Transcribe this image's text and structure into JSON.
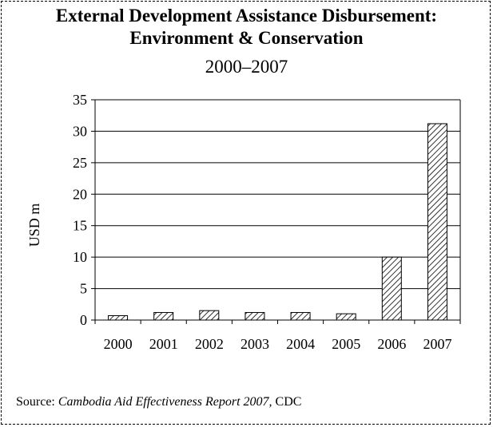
{
  "title_line1": "External Development Assistance Disbursement:",
  "title_line2": "Environment & Conservation",
  "subtitle": "2000–2007",
  "source": {
    "prefix": "Source: ",
    "italic": "Cambodia Aid Effectiveness Report 2007,",
    "suffix": " CDC"
  },
  "chart_data": {
    "type": "bar",
    "categories": [
      "2000",
      "2001",
      "2002",
      "2003",
      "2004",
      "2005",
      "2006",
      "2007"
    ],
    "values": [
      0.7,
      1.2,
      1.5,
      1.2,
      1.2,
      1.0,
      10.0,
      31.2
    ],
    "ylabel": "USD m",
    "xlabel": "",
    "ylim": [
      0,
      35
    ],
    "yticks": [
      0,
      5,
      10,
      15,
      20,
      25,
      30,
      35
    ],
    "grid": true,
    "legend": "none",
    "bar_fill": "diagonal-hatch",
    "colors": {
      "bar_stroke": "#000000",
      "hatch": "#000000",
      "grid": "#000000"
    }
  }
}
